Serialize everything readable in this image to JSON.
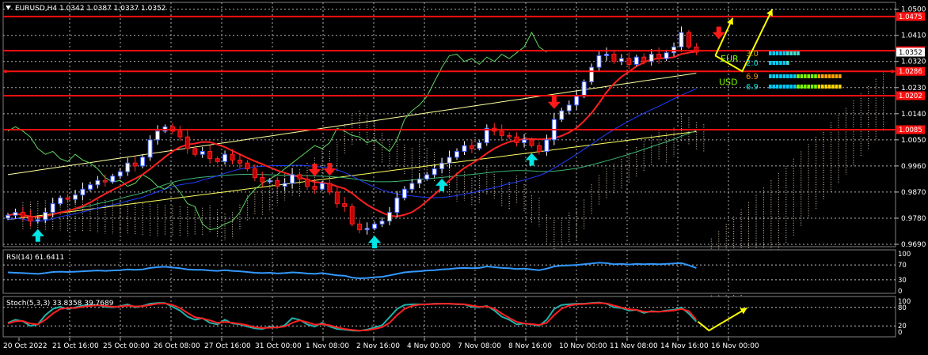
{
  "header": {
    "symbol_line": "EURUSD,H4  1.0342 1.0387 1.0337 1.0352"
  },
  "chart_data": {
    "type": "candlestick",
    "symbol": "EURUSD",
    "timeframe": "H4",
    "ohlc_readout": {
      "open": 1.0342,
      "high": 1.0387,
      "low": 1.0337,
      "close": 1.0352
    },
    "price_axis": {
      "range": [
        0.969,
        1.051
      ],
      "ticks": [
        "1.0500",
        "1.0410",
        "1.0320",
        "1.0230",
        "1.0140",
        "1.0050",
        "0.9960",
        "0.9870",
        "0.9780",
        "0.9690"
      ]
    },
    "time_labels": [
      "20 Oct 2022",
      "21 Oct 16:00",
      "25 Oct 00:00",
      "26 Oct 08:00",
      "27 Oct 16:00",
      "31 Oct 00:00",
      "1 Nov 08:00",
      "2 Nov 16:00",
      "4 Nov 00:00",
      "7 Nov 08:00",
      "8 Nov 16:00",
      "10 Nov 00:00",
      "11 Nov 08:00",
      "14 Nov 16:00",
      "16 Nov 00:00"
    ],
    "closes": [
      0.979,
      0.98,
      0.9785,
      0.977,
      0.9775,
      0.98,
      0.983,
      0.985,
      0.9845,
      0.986,
      0.988,
      0.9895,
      0.991,
      0.9905,
      0.9925,
      0.994,
      0.997,
      0.996,
      0.999,
      1.005,
      1.008,
      1.0095,
      1.008,
      1.006,
      1.002,
      1.0,
      1.001,
      0.9985,
      0.9975,
      1.0,
      0.998,
      0.997,
      0.995,
      0.992,
      0.9905,
      0.991,
      0.989,
      0.99,
      0.993,
      0.9915,
      0.989,
      0.988,
      0.99,
      0.987,
      0.983,
      0.982,
      0.976,
      0.974,
      0.9745,
      0.976,
      0.977,
      0.98,
      0.985,
      0.988,
      0.99,
      0.9915,
      0.993,
      0.995,
      0.997,
      0.999,
      1.001,
      1.003,
      1.002,
      1.004,
      1.009,
      1.008,
      1.0065,
      1.006,
      1.004,
      1.005,
      1.003,
      1.001,
      1.005,
      1.012,
      1.015,
      1.017,
      1.02,
      1.025,
      1.03,
      1.034,
      1.0345,
      1.032,
      1.033,
      1.031,
      1.0335,
      1.032,
      1.0345,
      1.033,
      1.035,
      1.037,
      1.042,
      1.037,
      1.0352
    ],
    "horizontal_levels": [
      {
        "price": 1.0475,
        "label": "1.0475"
      },
      {
        "price": 1.0357,
        "label": "1.0357"
      },
      {
        "price": 1.0286,
        "label": "1.0286"
      },
      {
        "price": 1.0202,
        "label": "1.0202"
      },
      {
        "price": 1.0085,
        "label": "1.0085"
      }
    ],
    "current_price_label": "1.0352",
    "sell_arrows_at_candle": [
      41,
      43,
      73,
      95
    ],
    "buy_arrows_at_candle": [
      4,
      49,
      58,
      70
    ],
    "strength_panel": [
      {
        "currency": "EUR",
        "values": [
          "3.0",
          "2.0"
        ]
      },
      {
        "currency": "USD",
        "values": [
          "6.9",
          "6.9"
        ]
      }
    ],
    "rsi": {
      "label": "RSI(14) 61.6411",
      "range": [
        0,
        100
      ],
      "ticks": [
        "100",
        "70",
        "30",
        "0"
      ],
      "levels": [
        70,
        30
      ],
      "values": [
        50,
        49,
        48,
        47,
        46,
        48,
        51,
        52,
        51,
        52,
        53,
        54,
        55,
        54,
        55,
        56,
        58,
        57,
        58,
        62,
        64,
        65,
        63,
        61,
        58,
        57,
        57,
        55,
        54,
        56,
        54,
        53,
        51,
        49,
        48,
        49,
        47,
        48,
        50,
        49,
        47,
        46,
        48,
        45,
        42,
        41,
        36,
        34,
        35,
        37,
        38,
        42,
        46,
        50,
        52,
        53,
        55,
        56,
        58,
        59,
        61,
        62,
        61,
        62,
        66,
        64,
        62,
        61,
        59,
        60,
        58,
        56,
        60,
        66,
        68,
        69,
        70,
        72,
        74,
        76,
        75,
        72,
        73,
        71,
        73,
        72,
        73,
        72,
        73,
        74,
        75,
        69,
        62
      ]
    },
    "stochastic": {
      "label": "Stoch(5,3,3) 33.8358 39.7689",
      "range": [
        0,
        100
      ],
      "ticks": [
        "100",
        "80",
        "20",
        "0"
      ],
      "levels": [
        80,
        20
      ],
      "main": [
        30,
        40,
        35,
        20,
        25,
        55,
        75,
        82,
        75,
        80,
        86,
        88,
        88,
        82,
        80,
        84,
        90,
        80,
        85,
        92,
        94,
        94,
        82,
        70,
        50,
        40,
        45,
        30,
        25,
        40,
        28,
        25,
        18,
        12,
        10,
        18,
        14,
        22,
        45,
        40,
        25,
        18,
        30,
        18,
        10,
        8,
        5,
        4,
        8,
        15,
        22,
        48,
        75,
        88,
        90,
        90,
        90,
        92,
        92,
        92,
        90,
        90,
        82,
        80,
        85,
        70,
        50,
        40,
        25,
        28,
        25,
        20,
        40,
        75,
        88,
        90,
        92,
        92,
        94,
        96,
        92,
        80,
        78,
        70,
        72,
        62,
        68,
        66,
        70,
        72,
        80,
        60,
        34
      ],
      "signal": [
        28,
        35,
        36,
        28,
        25,
        40,
        60,
        75,
        78,
        78,
        82,
        85,
        87,
        85,
        82,
        83,
        86,
        83,
        84,
        88,
        92,
        93,
        88,
        78,
        62,
        48,
        44,
        38,
        30,
        33,
        30,
        27,
        22,
        16,
        13,
        14,
        15,
        18,
        30,
        38,
        32,
        24,
        26,
        22,
        15,
        10,
        7,
        5,
        6,
        10,
        16,
        30,
        55,
        75,
        85,
        89,
        90,
        91,
        92,
        92,
        91,
        90,
        86,
        82,
        83,
        76,
        60,
        46,
        33,
        28,
        26,
        23,
        30,
        55,
        76,
        86,
        90,
        91,
        93,
        94,
        93,
        86,
        80,
        74,
        72,
        66,
        66,
        66,
        68,
        70,
        75,
        68,
        40
      ]
    }
  }
}
